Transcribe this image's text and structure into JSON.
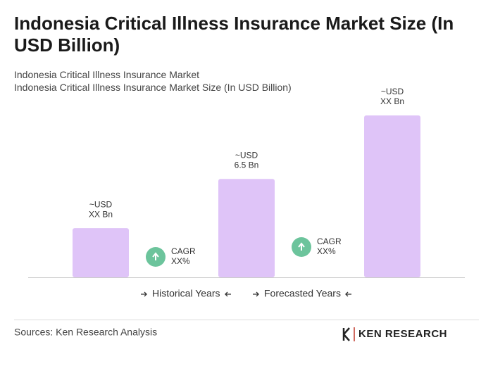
{
  "chart_data": {
    "type": "bar",
    "title": "Indonesia Critical Illness Insurance Market Size (In USD Billion)",
    "subtitle": [
      "Indonesia Critical Illness Insurance Market",
      "Indonesia Critical Illness Insurance Market Size (In USD Billion)"
    ],
    "categories": [
      null,
      null,
      null
    ],
    "values": [
      3.25,
      6.5,
      10.7
    ],
    "value_labels": [
      [
        "~USD",
        "XX Bn"
      ],
      [
        "~USD",
        "6.5 Bn"
      ],
      [
        "~USD",
        "XX Bn"
      ]
    ],
    "color": "#dfc4f8",
    "annotations": [
      [
        "CAGR",
        "XX%"
      ],
      [
        "CAGR",
        "XX%"
      ]
    ],
    "annotation_color": "#6cc49c",
    "legend": [
      "Historical Years",
      "Forecasted Years"
    ],
    "source": "Sources: Ken Research Analysis",
    "logo": "KEN RESEARCH"
  }
}
